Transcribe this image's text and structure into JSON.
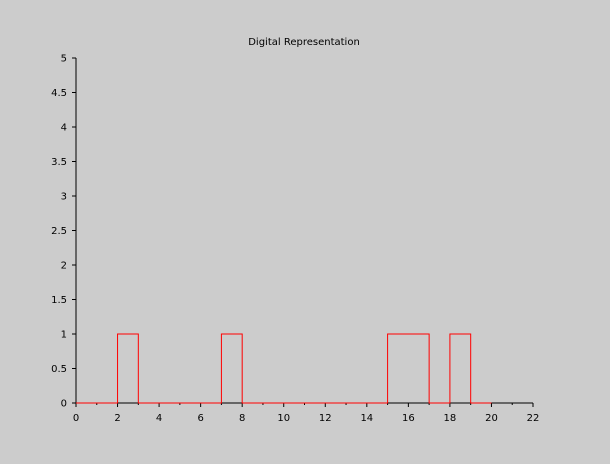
{
  "chart_data": {
    "type": "line",
    "title": "Digital Representation",
    "xlabel": "",
    "ylabel": "",
    "xlim": [
      0,
      22
    ],
    "ylim": [
      0,
      5
    ],
    "x_ticks": [
      0,
      2,
      4,
      6,
      8,
      10,
      12,
      14,
      16,
      18,
      20,
      22
    ],
    "y_ticks": [
      0,
      0.5,
      1,
      1.5,
      2,
      2.5,
      3,
      3.5,
      4,
      4.5,
      5
    ],
    "x_tick_labels": [
      "0",
      "2",
      "4",
      "6",
      "8",
      "10",
      "12",
      "14",
      "16",
      "18",
      "20",
      "22"
    ],
    "y_tick_labels": [
      "0",
      "0.5",
      "1",
      "1.5",
      "2",
      "2.5",
      "3",
      "3.5",
      "4",
      "4.5",
      "5"
    ],
    "grid": false,
    "legend": false,
    "series": [
      {
        "color": "#ff0000",
        "step": "pre",
        "x": [
          0,
          1,
          2,
          3,
          4,
          5,
          6,
          7,
          8,
          9,
          10,
          11,
          12,
          13,
          14,
          15,
          16,
          17,
          18,
          19,
          20
        ],
        "y": [
          0,
          0,
          0,
          1,
          0,
          0,
          0,
          0,
          1,
          0,
          0,
          0,
          0,
          0,
          0,
          0,
          1,
          1,
          0,
          1,
          0
        ]
      }
    ],
    "colors": {
      "background": "#cccccc",
      "axis": "#000000",
      "line": "#ff0000"
    }
  }
}
